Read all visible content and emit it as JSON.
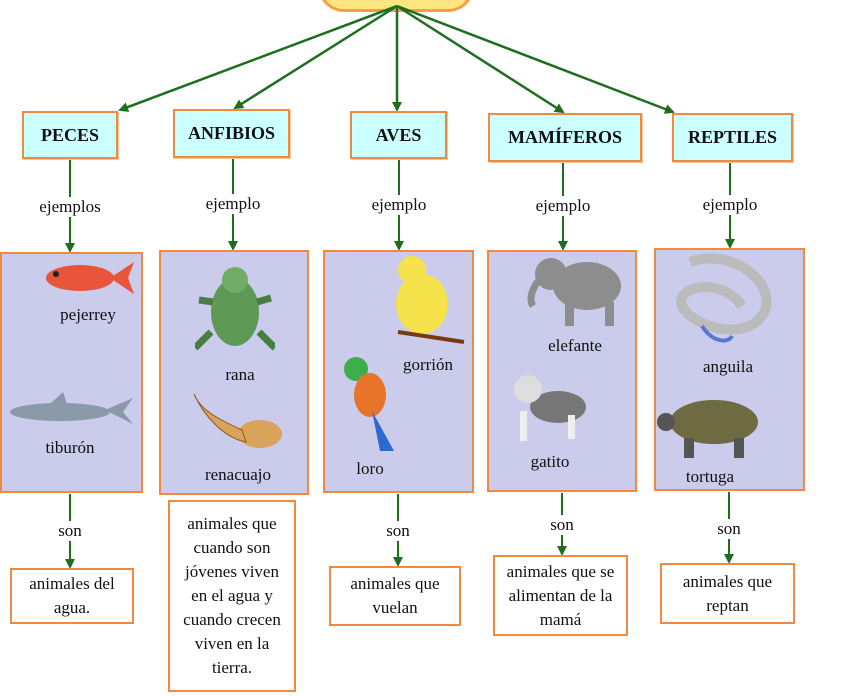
{
  "colors": {
    "arrow": "#1e6e1e",
    "box_border": "#f08a40",
    "category_fill": "#ccffff",
    "example_fill": "#cbcbeb"
  },
  "categories": [
    {
      "title": "PECES",
      "link": "ejemplos",
      "animals": [
        "pejerrey",
        "tiburón"
      ],
      "link2": "son",
      "description": "animales del agua."
    },
    {
      "title": "ANFIBIOS",
      "link": "ejemplo",
      "animals": [
        "rana",
        "renacuajo"
      ],
      "link2": "son",
      "description": "animales que cuando son jóvenes viven en el agua y cuando crecen viven en la tierra."
    },
    {
      "title": "AVES",
      "link": "ejemplo",
      "animals": [
        "gorrión",
        "loro"
      ],
      "link2": "son",
      "description": "animales que vuelan"
    },
    {
      "title": "MAMÍFEROS",
      "link": "ejemplo",
      "animals": [
        "elefante",
        "gatito"
      ],
      "link2": "son",
      "description": "animales que se alimentan de la mamá"
    },
    {
      "title": "REPTILES",
      "link": "ejemplo",
      "animals": [
        "anguila",
        "tortuga"
      ],
      "link2": "son",
      "description": "animales que reptan"
    }
  ]
}
